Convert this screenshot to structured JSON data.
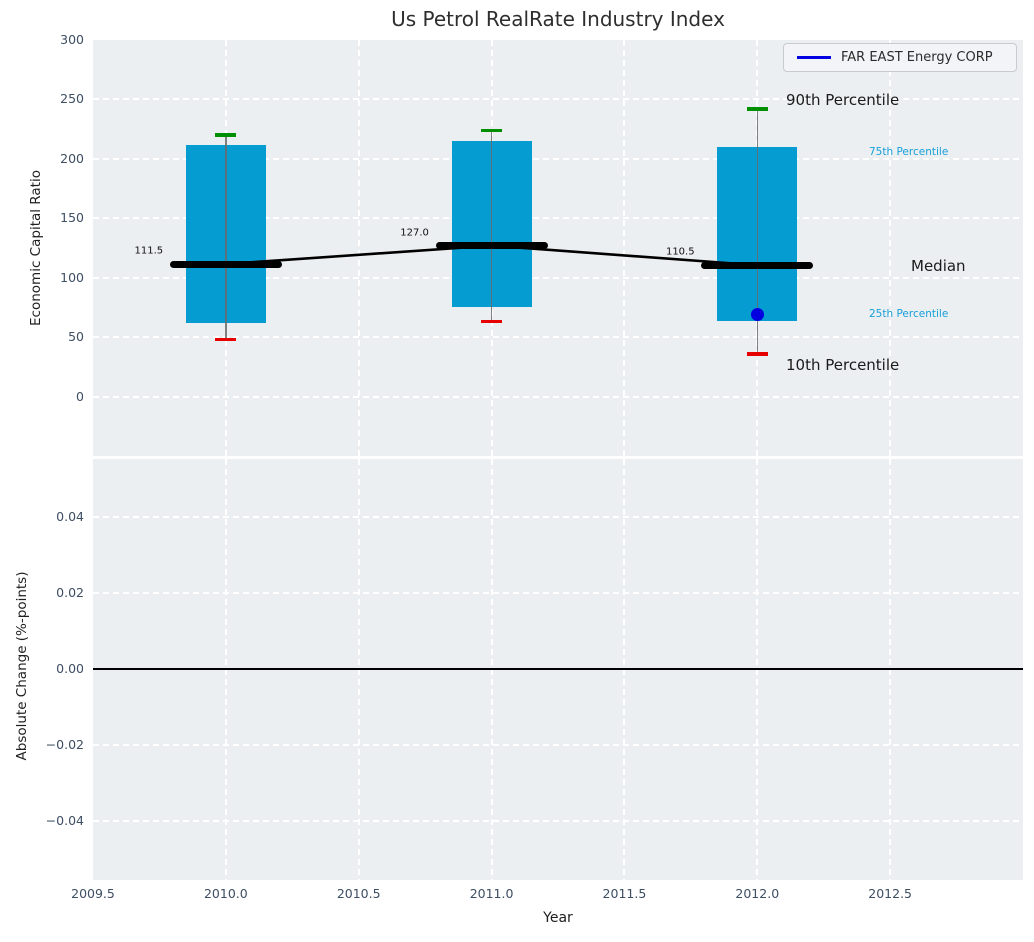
{
  "figure": {
    "title": "Us Petrol RealRate Industry Index",
    "xlabel": "Year",
    "legend": {
      "label": "FAR EAST Energy CORP"
    }
  },
  "annotations": {
    "p90": "90th Percentile",
    "p75": "75th Percentile",
    "median": "Median",
    "p25": "25th Percentile",
    "p10": "10th Percentile"
  },
  "colors": {
    "plot_bg": "#eceff1",
    "grid": "#ffffff",
    "box_fill": "#049cd1",
    "whisker_line": "#6a6a6a",
    "p90_cap": "#008f00",
    "p10_cap": "#e60000",
    "median_line": "#000000",
    "company_blue": "#0000e0",
    "accent_text": "#17a0d8",
    "tick_text": "#3e4e63",
    "zero_line": "#000000"
  },
  "chart_data": [
    {
      "type": "boxplot",
      "title": "Us Petrol RealRate Industry Index",
      "ylabel": "Economic Capital Ratio",
      "xlabel": "Year",
      "legend_position": "upper right",
      "grid": true,
      "xlim": [
        2009.5,
        2013.0
      ],
      "ylim": [
        -50,
        300
      ],
      "xticks": [
        "2009.5",
        "2010.0",
        "2010.5",
        "2011.0",
        "2011.5",
        "2012.0",
        "2012.5"
      ],
      "xtick_values": [
        2009.5,
        2010.0,
        2010.5,
        2011.0,
        2011.5,
        2012.0,
        2012.5
      ],
      "yticks": [
        "0",
        "50",
        "100",
        "150",
        "200",
        "250",
        "300"
      ],
      "ytick_values": [
        0,
        50,
        100,
        150,
        200,
        250,
        300
      ],
      "boxes": [
        {
          "x": 2010,
          "p10": 48,
          "p25": 62,
          "median": 111.5,
          "p75": 212,
          "p90": 220,
          "median_label": "111.5"
        },
        {
          "x": 2011,
          "p10": 63,
          "p25": 75,
          "median": 127.0,
          "p75": 215,
          "p90": 224,
          "median_label": "127.0"
        },
        {
          "x": 2012,
          "p10": 36,
          "p25": 64,
          "median": 110.5,
          "p75": 210,
          "p90": 242,
          "median_label": "110.5"
        }
      ],
      "median_trend": {
        "x": [
          2010,
          2011,
          2012
        ],
        "y": [
          111.5,
          127.0,
          110.5
        ]
      },
      "company_point": {
        "name": "FAR EAST Energy CORP",
        "x": 2012,
        "y": 69
      }
    },
    {
      "type": "line",
      "ylabel": "Absolute Change (%-points)",
      "grid": true,
      "xlim": [
        2009.5,
        2013.0
      ],
      "ylim": [
        -0.0555,
        0.0553
      ],
      "yticks": [
        "0.04",
        "0.02",
        "0.00",
        "−0.02",
        "−0.04"
      ],
      "ytick_values": [
        0.04,
        0.02,
        0.0,
        -0.02,
        -0.04
      ],
      "zero_line_y": 0.0,
      "series": []
    }
  ]
}
